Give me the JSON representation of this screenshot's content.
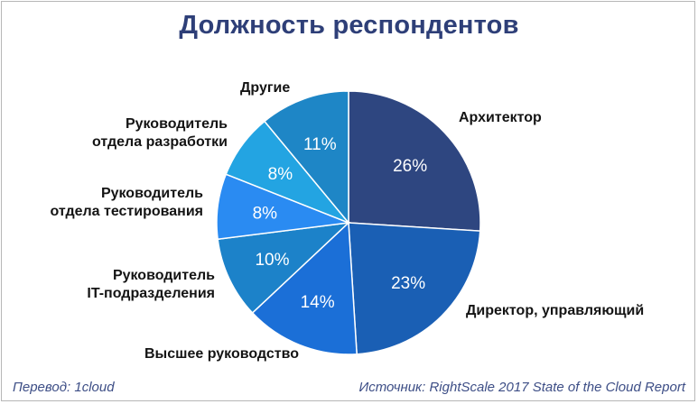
{
  "chart_data": {
    "type": "pie",
    "title": "Должность респондентов",
    "slices": [
      {
        "label": "Архитектор",
        "value": 26,
        "value_label": "26%",
        "color": "#2e4680"
      },
      {
        "label": "Директор, управляющий",
        "value": 23,
        "value_label": "23%",
        "color": "#1a5fb4"
      },
      {
        "label": "Высшее руководство",
        "value": 14,
        "value_label": "14%",
        "color": "#1b6fd7"
      },
      {
        "label": "Руководитель IT-подразделения",
        "value": 10,
        "value_label": "10%",
        "color": "#1c82c9"
      },
      {
        "label": "Руководитель отдела тестирования",
        "value": 8,
        "value_label": "8%",
        "color": "#2a8bf2"
      },
      {
        "label": "Руководитель отдела разработки",
        "value": 8,
        "value_label": "8%",
        "color": "#23a4e2"
      },
      {
        "label": "Другие",
        "value": 11,
        "value_label": "11%",
        "color": "#1e86c6"
      }
    ]
  },
  "labels": {
    "architect": "Архитектор",
    "director": "Директор, управляющий",
    "top_mgmt": "Высшее руководство",
    "it_head_1": "Руководитель",
    "it_head_2": "IT-подразделения",
    "test_head_1": "Руководитель",
    "test_head_2": "отдела тестирования",
    "dev_head_1": "Руководитель",
    "dev_head_2": "отдела разработки",
    "other": "Другие"
  },
  "footer": {
    "translation": "Перевод: 1cloud",
    "source": "Источник: RightScale 2017 State of the Cloud Report"
  }
}
